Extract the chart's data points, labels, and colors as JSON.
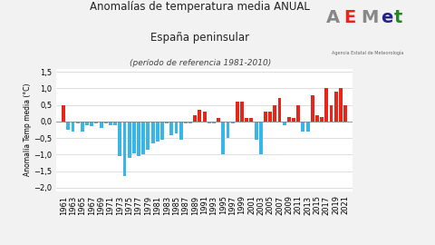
{
  "years": [
    1961,
    1962,
    1963,
    1964,
    1965,
    1966,
    1967,
    1968,
    1969,
    1970,
    1971,
    1972,
    1973,
    1974,
    1975,
    1976,
    1977,
    1978,
    1979,
    1980,
    1981,
    1982,
    1983,
    1984,
    1985,
    1986,
    1987,
    1988,
    1989,
    1990,
    1991,
    1992,
    1993,
    1994,
    1995,
    1996,
    1997,
    1998,
    1999,
    2000,
    2001,
    2002,
    2003,
    2004,
    2005,
    2006,
    2007,
    2008,
    2009,
    2010,
    2011,
    2012,
    2013,
    2014,
    2015,
    2016,
    2017,
    2018,
    2019,
    2020,
    2021
  ],
  "values": [
    0.48,
    -0.25,
    -0.3,
    -0.05,
    -0.3,
    -0.1,
    -0.15,
    -0.05,
    -0.2,
    -0.05,
    -0.1,
    -0.1,
    -1.05,
    -1.65,
    -1.1,
    -0.95,
    -1.05,
    -1.0,
    -0.85,
    -0.65,
    -0.6,
    -0.55,
    -0.05,
    -0.4,
    -0.35,
    -0.55,
    -0.05,
    -0.05,
    0.2,
    0.35,
    0.3,
    -0.05,
    -0.05,
    0.1,
    -1.0,
    -0.5,
    -0.05,
    0.6,
    0.6,
    0.1,
    0.1,
    -0.55,
    -1.0,
    0.3,
    0.3,
    0.5,
    0.7,
    -0.1,
    0.15,
    0.1,
    0.5,
    -0.3,
    -0.3,
    0.8,
    0.2,
    0.15,
    1.0,
    0.5,
    0.9,
    1.0,
    0.5
  ],
  "title_line1": "Anomalías de temperatura media ANUAL",
  "title_line2": "España peninsular",
  "subtitle": "(período de referencia 1981-2010)",
  "ylabel": "Anomalía Temp media (°C)",
  "color_pos": "#e8251a",
  "color_neg": "#38b6e8",
  "ylim": [
    -2.1,
    1.6
  ],
  "yticks": [
    -2.0,
    -1.5,
    -1.0,
    -0.5,
    0.0,
    0.5,
    1.0,
    1.5
  ],
  "background_color": "#f2f2f2",
  "plot_bg": "#ffffff",
  "bar_width": 0.75,
  "title1_fontsize": 8.5,
  "title2_fontsize": 8.5,
  "subtitle_fontsize": 6.5,
  "ylabel_fontsize": 5.5,
  "tick_fontsize": 6.0
}
